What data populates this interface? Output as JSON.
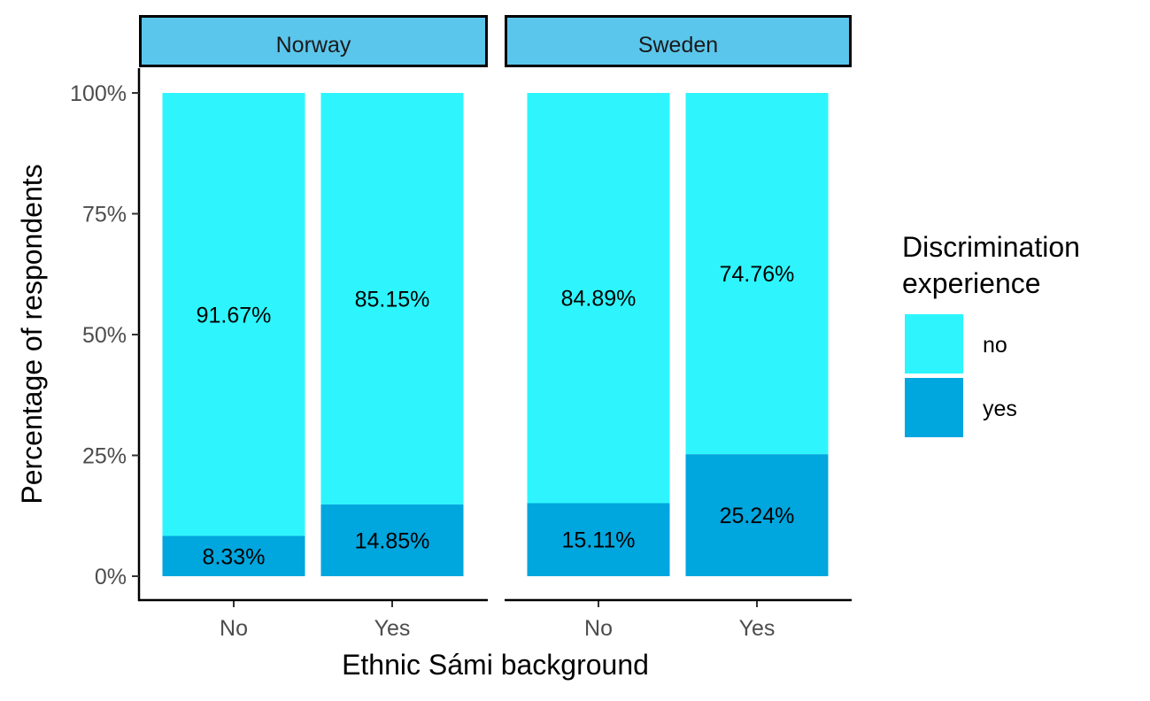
{
  "chart_data": {
    "type": "bar",
    "stacked": true,
    "facet_by": "country",
    "facets": [
      {
        "name": "Norway",
        "categories": [
          "No",
          "Yes"
        ],
        "series": [
          {
            "name": "no",
            "values": [
              91.67,
              85.15
            ],
            "labels": [
              "91.67%",
              "85.15%"
            ]
          },
          {
            "name": "yes",
            "values": [
              8.33,
              14.85
            ],
            "labels": [
              "8.33%",
              "14.85%"
            ]
          }
        ]
      },
      {
        "name": "Sweden",
        "categories": [
          "No",
          "Yes"
        ],
        "series": [
          {
            "name": "no",
            "values": [
              84.89,
              74.76
            ],
            "labels": [
              "84.89%",
              "74.76%"
            ]
          },
          {
            "name": "yes",
            "values": [
              15.11,
              25.24
            ],
            "labels": [
              "15.11%",
              "25.24%"
            ]
          }
        ]
      }
    ],
    "xlabel": "Ethnic Sámi background",
    "ylabel": "Percentage of respondents",
    "ylim": [
      0,
      100
    ],
    "yticks": [
      0,
      25,
      50,
      75,
      100
    ],
    "ytick_labels": [
      "0%",
      "25%",
      "50%",
      "75%",
      "100%"
    ],
    "grid": false,
    "legend": {
      "title_lines": [
        "Discrimination",
        "experience"
      ],
      "position": "right",
      "entries": [
        {
          "name": "no",
          "color": "#2EF5FD"
        },
        {
          "name": "yes",
          "color": "#00A6DE"
        }
      ]
    },
    "colors": {
      "no": "#2EF5FD",
      "yes": "#00A6DE",
      "strip_fill": "#5BC6EC",
      "axis": "#000000",
      "tick_text": "#4d4d4d"
    }
  }
}
